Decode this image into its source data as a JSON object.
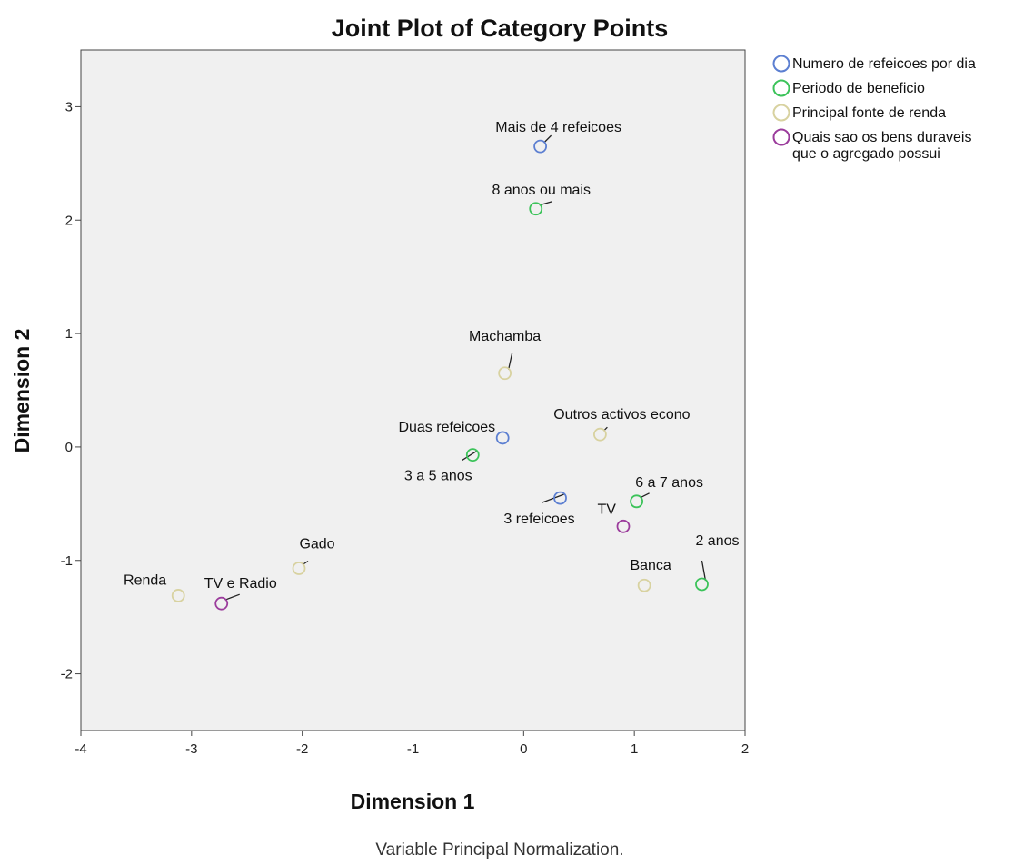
{
  "chart_data": {
    "type": "scatter",
    "title": "Joint Plot of Category Points",
    "xlabel": "Dimension 1",
    "ylabel": "Dimension 2",
    "xlim": [
      -4,
      2.0
    ],
    "ylim": [
      -2.5,
      3.5
    ],
    "xticks": [
      -4,
      -3,
      -2,
      -1,
      0,
      1,
      2
    ],
    "yticks": [
      -2,
      -1,
      0,
      1,
      2,
      3
    ],
    "xtick_labels": [
      "-4",
      "-3",
      "-2",
      "-1",
      "0",
      "1",
      "2"
    ],
    "ytick_labels": [
      "-2",
      "-1",
      "0",
      "1",
      "2",
      "3"
    ],
    "legend_position": "right",
    "grid": false,
    "footnote": "Variable Principal Normalization.",
    "series": [
      {
        "name": "Numero de refeicoes por dia",
        "name_lines": [
          "Numero de refeicoes por dia"
        ],
        "color": "#5c7fd1",
        "points": [
          {
            "label": "Mais de 4 refeicoes",
            "x": 0.15,
            "y": 2.65
          },
          {
            "label": "Duas refeicoes",
            "x": -0.19,
            "y": 0.08
          },
          {
            "label": "3 refeicoes",
            "x": 0.33,
            "y": -0.45
          }
        ]
      },
      {
        "name": "Periodo de beneficio",
        "name_lines": [
          "Periodo de beneficio"
        ],
        "color": "#3cc35a",
        "points": [
          {
            "label": "8 anos ou mais",
            "x": 0.11,
            "y": 2.1
          },
          {
            "label": "3 a 5 anos",
            "x": -0.46,
            "y": -0.07
          },
          {
            "label": "6 a 7 anos",
            "x": 1.02,
            "y": -0.48
          },
          {
            "label": "2 anos",
            "x": 1.61,
            "y": -1.21
          }
        ]
      },
      {
        "name": "Principal fonte de renda",
        "name_lines": [
          "Principal fonte de renda"
        ],
        "color": "#d8d2a0",
        "points": [
          {
            "label": "Machamba",
            "x": -0.17,
            "y": 0.65
          },
          {
            "label": "Outros activos econo",
            "x": 0.69,
            "y": 0.11
          },
          {
            "label": "Gado",
            "x": -2.03,
            "y": -1.07
          },
          {
            "label": "Renda",
            "x": -3.12,
            "y": -1.31
          },
          {
            "label": "Banca",
            "x": 1.09,
            "y": -1.22
          }
        ]
      },
      {
        "name": "Quais sao os bens duraveis que o agregado possui",
        "name_lines": [
          "Quais sao os bens duraveis",
          "que o agregado possui"
        ],
        "color": "#9b3c9c",
        "points": [
          {
            "label": "TV",
            "x": 0.9,
            "y": -0.7
          },
          {
            "label": "TV e Radio",
            "x": -2.73,
            "y": -1.38
          }
        ]
      }
    ]
  }
}
